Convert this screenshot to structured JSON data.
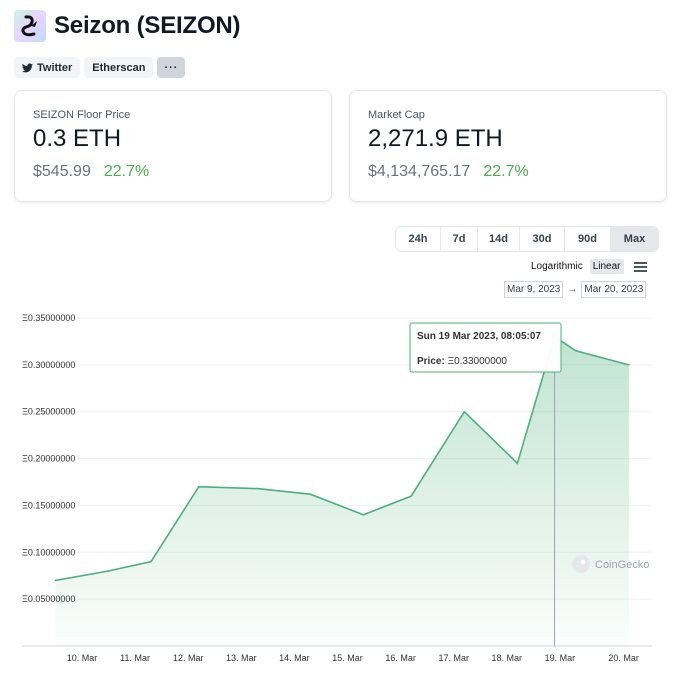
{
  "header": {
    "title": "Seizon (SEIZON)"
  },
  "links": {
    "twitter": "Twitter",
    "etherscan": "Etherscan",
    "more": "···"
  },
  "cards": [
    {
      "label": "SEIZON Floor Price",
      "value": "0.3 ETH",
      "usd": "$545.99",
      "change": "22.7%"
    },
    {
      "label": "Market Cap",
      "value": "2,271.9 ETH",
      "usd": "$4,134,765.17",
      "change": "22.7%"
    }
  ],
  "ranges": {
    "items": [
      "24h",
      "7d",
      "14d",
      "30d",
      "90d",
      "Max"
    ],
    "active": "Max"
  },
  "scale": {
    "log": "Logarithmic",
    "linear": "Linear",
    "active": "Linear"
  },
  "date_range": {
    "from": "Mar 9, 2023",
    "arrow": "→",
    "to": "Mar 20, 2023"
  },
  "tooltip": {
    "title": "Sun 19 Mar 2023, 08:05:07",
    "price_label": "Price:",
    "price_value": "Ξ0.33000000"
  },
  "watermark": "CoinGecko",
  "colors": {
    "line": "#4caf7d",
    "positive": "#4caf50"
  },
  "chart_data": {
    "type": "area",
    "title": "",
    "xlabel": "",
    "ylabel": "",
    "ylim": [
      0.0,
      0.35
    ],
    "yticks": [
      "Ξ0.35000000",
      "Ξ0.30000000",
      "Ξ0.25000000",
      "Ξ0.20000000",
      "Ξ0.15000000",
      "Ξ0.10000000",
      "Ξ0.05000000"
    ],
    "ytick_values": [
      0.35,
      0.3,
      0.25,
      0.2,
      0.15,
      0.1,
      0.05
    ],
    "xticks": [
      "10. Mar",
      "11. Mar",
      "12. Mar",
      "13. Mar",
      "14. Mar",
      "15. Mar",
      "16. Mar",
      "17. Mar",
      "18. Mar",
      "19. Mar",
      "20. Mar"
    ],
    "xtick_days": [
      10,
      11,
      12,
      13,
      14,
      15,
      16,
      17,
      18,
      19,
      20.2
    ],
    "series": [
      {
        "days": [
          9.5,
          10.5,
          11.3,
          12.2,
          13.3,
          14.3,
          15.3,
          16.2,
          17.2,
          18.2,
          18.9,
          19.3,
          20.3
        ],
        "values": [
          0.07,
          0.08,
          0.09,
          0.17,
          0.168,
          0.162,
          0.14,
          0.16,
          0.25,
          0.195,
          0.33,
          0.315,
          0.3
        ]
      }
    ],
    "highlight": {
      "day": 18.9,
      "value": 0.33
    },
    "grid": true
  }
}
